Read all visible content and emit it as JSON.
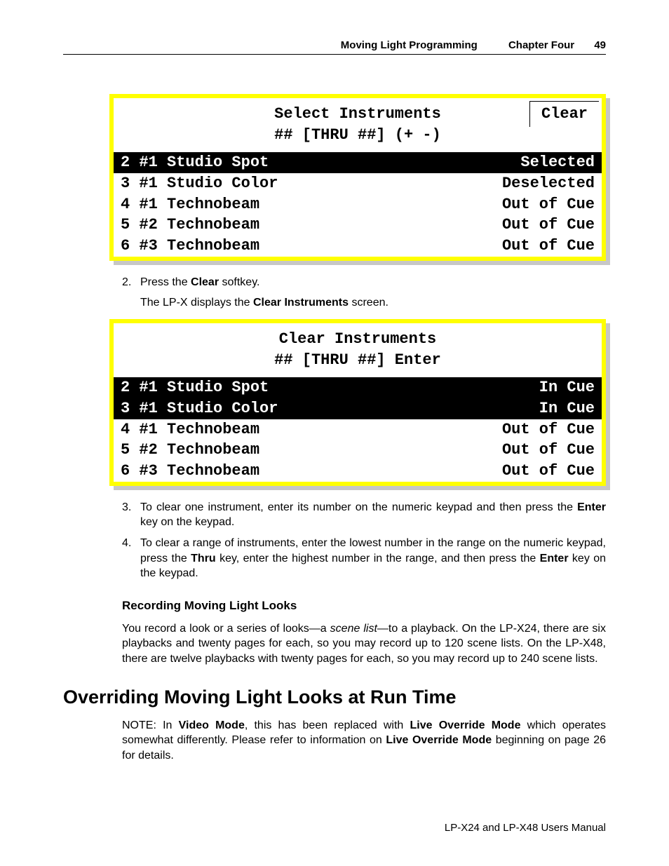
{
  "header": {
    "title": "Moving Light Programming",
    "chapter": "Chapter Four",
    "page": "49"
  },
  "screen1": {
    "title_line1": "Select Instruments",
    "title_line2": "## [THRU ##] (+ -)",
    "softkey_label": "Clear",
    "border_color": "#ffff00",
    "shadow_color": "#c7c7c7",
    "highlight_bg": "#000000",
    "highlight_fg": "#ffffff",
    "normal_bg": "#ffffff",
    "normal_fg": "#000000",
    "font": "Courier New",
    "rows": [
      {
        "num": "2",
        "name": "#1 Studio Spot",
        "status": "Selected",
        "highlight": true
      },
      {
        "num": "3",
        "name": "#1 Studio Color",
        "status": "Deselected",
        "highlight": false
      },
      {
        "num": "4",
        "name": "#1 Technobeam",
        "status": "Out of Cue",
        "highlight": false
      },
      {
        "num": "5",
        "name": "#2 Technobeam",
        "status": "Out of Cue",
        "highlight": false
      },
      {
        "num": "6",
        "name": "#3 Technobeam",
        "status": "Out of Cue",
        "highlight": false
      }
    ]
  },
  "step2": {
    "num": "2.",
    "text_pre": "Press the ",
    "bold": "Clear",
    "text_post": " softkey.",
    "sub_pre": "The LP-X displays the ",
    "sub_bold": "Clear Instruments",
    "sub_post": " screen."
  },
  "screen2": {
    "title_line1": "Clear Instruments",
    "title_line2": "## [THRU ##] Enter",
    "border_color": "#ffff00",
    "shadow_color": "#c7c7c7",
    "highlight_bg": "#000000",
    "highlight_fg": "#ffffff",
    "normal_bg": "#ffffff",
    "normal_fg": "#000000",
    "font": "Courier New",
    "rows": [
      {
        "num": "2",
        "name": "#1 Studio Spot",
        "status": "In Cue",
        "highlight": true
      },
      {
        "num": "3",
        "name": "#1 Studio Color",
        "status": "In Cue",
        "highlight": true
      },
      {
        "num": "4",
        "name": "#1 Technobeam",
        "status": "Out of Cue",
        "highlight": false
      },
      {
        "num": "5",
        "name": "#2 Technobeam",
        "status": "Out of Cue",
        "highlight": false
      },
      {
        "num": "6",
        "name": "#3 Technobeam",
        "status": "Out of Cue",
        "highlight": false
      }
    ]
  },
  "step3": {
    "num": "3.",
    "pre": "To clear one instrument, enter its number on the numeric keypad and then press the ",
    "bold": "Enter",
    "post": " key on the keypad."
  },
  "step4": {
    "num": "4.",
    "pre": "To clear a range of instruments, enter the lowest number in the range on the numeric keypad, press the ",
    "bold1": "Thru",
    "mid": " key, enter the highest number in the range, and then press the ",
    "bold2": "Enter",
    "post": " key on the keypad."
  },
  "recording": {
    "heading": "Recording Moving Light Looks",
    "p_pre": "You record a look or a series of looks—a ",
    "p_ital": "scene list",
    "p_post": "—to a playback. On the LP-X24, there are six playbacks and twenty pages for each, so you may record up to 120 scene lists. On the LP-X48, there are twelve playbacks with twenty pages for each, so you may record up to 240 scene lists."
  },
  "override": {
    "heading": "Overriding Moving Light Looks at Run Time",
    "note_pre": "NOTE: In ",
    "b1": "Video Mode",
    "mid1": ", this has been replaced with ",
    "b2": "Live Override Mode",
    "mid2": " which operates somewhat differently. Please refer to information on ",
    "b3": "Live Override Mode",
    "post": " beginning on page 26 for details."
  },
  "footer": "LP-X24 and LP-X48 Users Manual"
}
